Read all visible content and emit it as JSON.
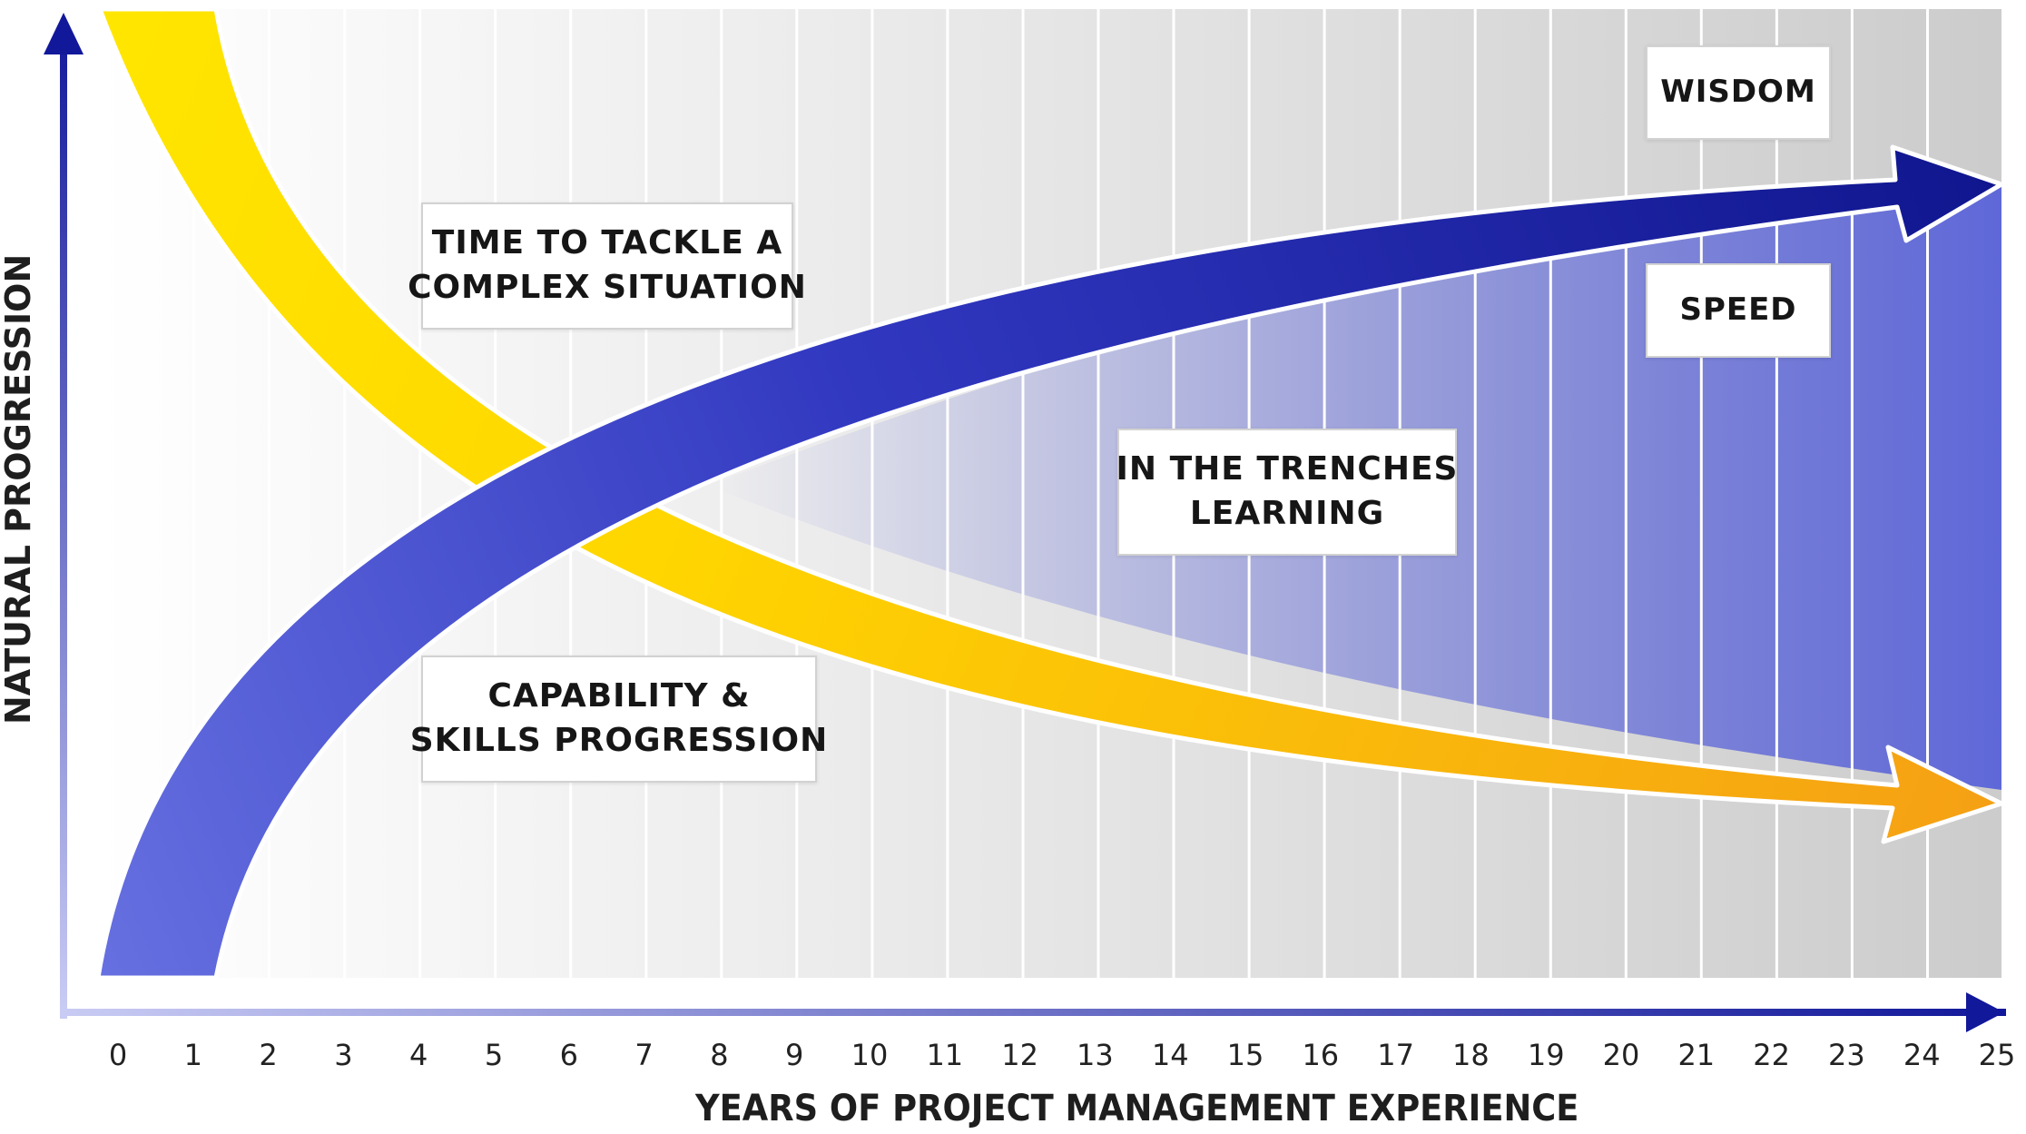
{
  "labels": {
    "time_to_tackle": {
      "line1": "TIME TO TACKLE A",
      "line2": "COMPLEX SITUATION"
    },
    "capability": {
      "line1": "CAPABILITY &",
      "line2": "SKILLS PROGRESSION"
    },
    "trenches": {
      "line1": "IN THE TRENCHES",
      "line2": "LEARNING"
    },
    "wisdom": "WISDOM",
    "speed": "SPEED"
  },
  "axes": {
    "x_title": "YEARS OF PROJECT MANAGEMENT EXPERIENCE",
    "y_title": "NATURAL PROGRESSION",
    "x_ticks": [
      "0",
      "1",
      "2",
      "3",
      "4",
      "5",
      "6",
      "7",
      "8",
      "9",
      "10",
      "11",
      "12",
      "13",
      "14",
      "15",
      "16",
      "17",
      "18",
      "19",
      "20",
      "21",
      "22",
      "23",
      "24",
      "25"
    ]
  },
  "colors": {
    "blue_dark": "#1a1f9e",
    "blue_light": "#6670e0",
    "yellow": "#ffe600",
    "orange": "#f5a312",
    "band_fill": "#5f68d8"
  }
}
